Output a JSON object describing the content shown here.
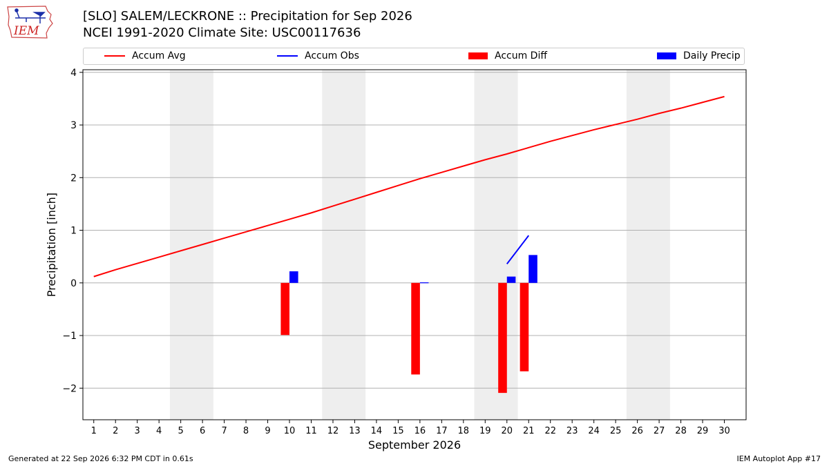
{
  "header": {
    "logo_text": "IEM",
    "title_line1": "[SLO] SALEM/LECKRONE :: Precipitation for Sep 2026",
    "title_line2": "NCEI 1991-2020 Climate Site: USC00117636"
  },
  "footer": {
    "generated": "Generated at 22 Sep 2026 6:32 PM CDT in 0.61s",
    "app": "IEM Autoplot App #17"
  },
  "chart_data": {
    "type": "bar",
    "xlabel": "September 2026",
    "ylabel": "Precipitation [inch]",
    "ylim": [
      -2.6,
      4.05
    ],
    "xlim": [
      0.5,
      31
    ],
    "yticks": [
      -2,
      -1,
      0,
      1,
      2,
      3,
      4
    ],
    "ytick_labels": [
      "−2",
      "−1",
      "0",
      "1",
      "2",
      "3",
      "4"
    ],
    "xticks": [
      1,
      2,
      3,
      4,
      5,
      6,
      7,
      8,
      9,
      10,
      11,
      12,
      13,
      14,
      15,
      16,
      17,
      18,
      19,
      20,
      21,
      22,
      23,
      24,
      25,
      26,
      27,
      28,
      29,
      30
    ],
    "grid": "horizontal",
    "legend_position": "top",
    "weekend_shading": [
      [
        4.5,
        6.5
      ],
      [
        11.5,
        13.5
      ],
      [
        18.5,
        20.5
      ],
      [
        25.5,
        27.5
      ]
    ],
    "colors": {
      "accum_avg": "#ff0000",
      "accum_obs": "#0000ff",
      "accum_diff": "#ff0000",
      "daily_precip": "#0000ff",
      "weekend": "#eeeeee",
      "grid": "#b0b0b0"
    },
    "legend": [
      {
        "label": "Accum Avg",
        "kind": "line",
        "color": "#ff0000"
      },
      {
        "label": "Accum Obs",
        "kind": "line",
        "color": "#0000ff"
      },
      {
        "label": "Accum Diff",
        "kind": "bar",
        "color": "#ff0000"
      },
      {
        "label": "Daily Precip",
        "kind": "bar",
        "color": "#0000ff"
      }
    ],
    "series": [
      {
        "name": "Accum Avg",
        "type": "line",
        "x": [
          1,
          2,
          3,
          4,
          5,
          6,
          7,
          8,
          9,
          10,
          11,
          12,
          13,
          14,
          15,
          16,
          17,
          18,
          19,
          20,
          21,
          22,
          23,
          24,
          25,
          26,
          27,
          28,
          29,
          30
        ],
        "values": [
          0.12,
          0.25,
          0.37,
          0.49,
          0.61,
          0.73,
          0.85,
          0.97,
          1.09,
          1.21,
          1.33,
          1.46,
          1.59,
          1.72,
          1.85,
          1.98,
          2.1,
          2.22,
          2.34,
          2.45,
          2.57,
          2.69,
          2.8,
          2.91,
          3.01,
          3.11,
          3.22,
          3.32,
          3.43,
          3.54
        ]
      },
      {
        "name": "Accum Obs",
        "type": "line",
        "x": [
          20,
          21
        ],
        "values": [
          0.36,
          0.9
        ]
      },
      {
        "name": "Accum Diff",
        "type": "bar",
        "x": [
          10,
          16,
          20,
          21
        ],
        "values": [
          -0.99,
          -1.74,
          -2.09,
          -1.68
        ]
      },
      {
        "name": "Daily Precip",
        "type": "bar",
        "x": [
          10,
          16,
          20,
          21
        ],
        "values": [
          0.22,
          0.01,
          0.12,
          0.53
        ]
      }
    ]
  }
}
